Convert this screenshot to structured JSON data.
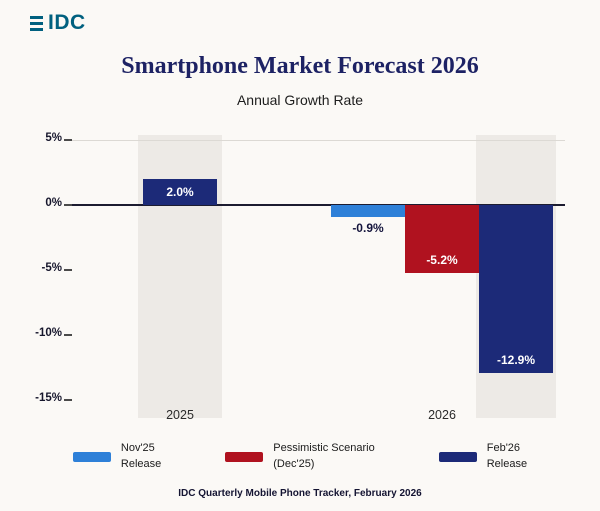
{
  "logo": {
    "text": "IDC"
  },
  "colors": {
    "background": "#fbf9f6",
    "title_navy": "#1d2264",
    "logo_teal": "#00607f",
    "highlight_band": "#edeae6",
    "zero_line": "#1c1c30"
  },
  "chart_data": {
    "type": "bar",
    "title": "Smartphone Market Forecast 2026",
    "subtitle": "Annual Growth Rate",
    "xlabel": "",
    "ylabel": "",
    "ylim": [
      -15,
      5
    ],
    "yticks": [
      5,
      0,
      -5,
      -10,
      -15
    ],
    "ytick_labels": [
      "5%",
      "0%",
      "-5%",
      "-10%",
      "-15%"
    ],
    "categories": [
      "2025",
      "2026"
    ],
    "series": [
      {
        "name": "Nov'25 Release",
        "color": "#2e80d8",
        "values": [
          null,
          -0.9
        ]
      },
      {
        "name": "Pessimistic Scenario (Dec'25)",
        "color": "#b0121f",
        "values": [
          null,
          -5.2
        ]
      },
      {
        "name": "Feb'26 Release",
        "color": "#1c2a78",
        "values": [
          2.0,
          -12.9
        ]
      }
    ],
    "bar_value_labels": [
      "2.0%",
      "-0.9%",
      "-5.2%",
      "-12.9%"
    ],
    "grid": "minimal",
    "legend_position": "bottom",
    "legend": [
      {
        "label_lines": [
          "Nov'25",
          "Release"
        ],
        "color": "#2e80d8"
      },
      {
        "label_lines": [
          "Pessimistic Scenario",
          "(Dec'25)"
        ],
        "color": "#b0121f"
      },
      {
        "label_lines": [
          "Feb'26",
          "Release"
        ],
        "color": "#1c2a78"
      }
    ],
    "footnote": "IDC Quarterly Mobile Phone Tracker, February 2026"
  }
}
